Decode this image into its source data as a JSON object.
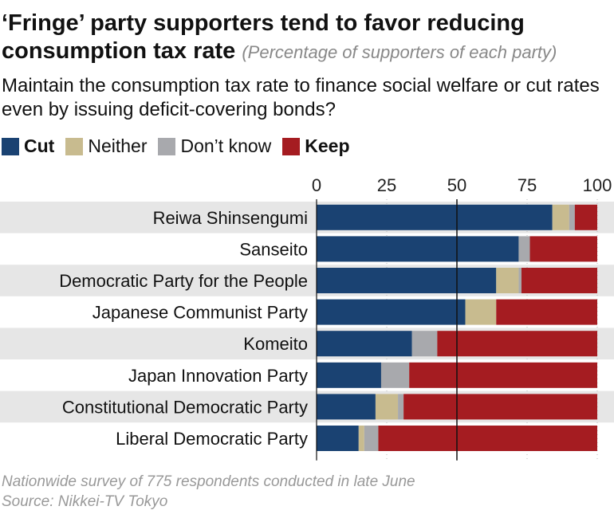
{
  "title": "‘Fringe’ party supporters tend to favor reducing consumption tax rate",
  "subtitle": "(Percentage of supporters of each party)",
  "question": "Maintain the consumption tax rate to finance social welfare or cut rates even by issuing deficit-covering bonds?",
  "footnote": [
    "Nationwide survey of 775 respondents conducted in late June",
    "Source: Nikkei-TV Tokyo"
  ],
  "chart_data": {
    "type": "bar",
    "orientation": "horizontal",
    "stacked": true,
    "xlim": [
      0,
      100
    ],
    "xticks": [
      "0",
      "25",
      "50",
      "75",
      "100"
    ],
    "reference_line": 50,
    "legend_position": "top-left",
    "categories": [
      "Reiwa Shinsengumi",
      "Sanseito",
      "Democratic Party for the People",
      "Japanese Communist Party",
      "Komeito",
      "Japan Innovation Party",
      "Constitutional Democratic Party",
      "Liberal Democratic Party"
    ],
    "series": [
      {
        "name": "Cut",
        "color": "#1a4272",
        "bold": true,
        "values": [
          84,
          72,
          64,
          53,
          34,
          23,
          21,
          15
        ]
      },
      {
        "name": "Neither",
        "color": "#c8bb8f",
        "bold": false,
        "values": [
          6,
          0,
          8,
          11,
          0,
          0,
          8,
          2
        ]
      },
      {
        "name": "Don’t know",
        "color": "#a8a9ad",
        "bold": false,
        "values": [
          2,
          4,
          1,
          0,
          9,
          10,
          2,
          5
        ]
      },
      {
        "name": "Keep",
        "color": "#a51c21",
        "bold": true,
        "values": [
          8,
          24,
          27,
          36,
          57,
          67,
          69,
          78
        ]
      }
    ]
  }
}
